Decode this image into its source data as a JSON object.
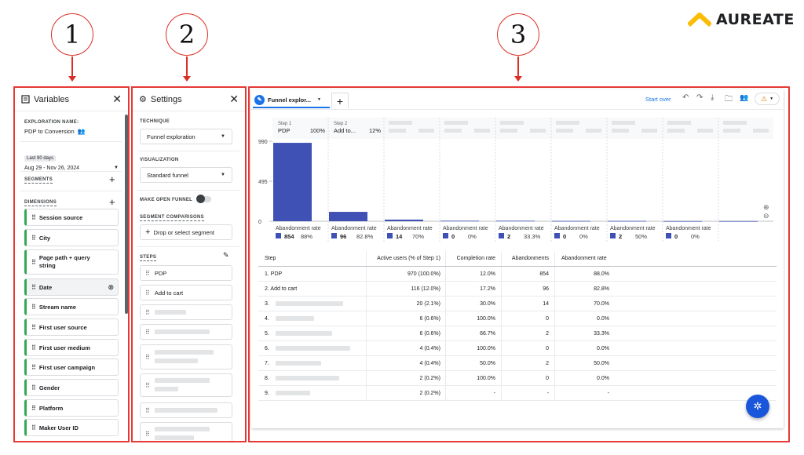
{
  "callouts": [
    "1",
    "2",
    "3"
  ],
  "brand": {
    "name": "AUREATE",
    "color": "#fbbc04"
  },
  "variables": {
    "title": "Variables",
    "exploration_label": "EXPLORATION NAME:",
    "exploration_name": "PDP to Conversion",
    "date_badge": "Last 90 days",
    "date_range": "Aug 29 - Nov 26, 2024",
    "segments_label": "SEGMENTS",
    "dimensions_label": "DIMENSIONS",
    "dimensions": [
      "Session source",
      "City",
      "Page path + query string",
      "Date",
      "Stream name",
      "First user source",
      "First user medium",
      "First user campaign",
      "Gender",
      "Platform",
      "Maker User ID"
    ]
  },
  "settings": {
    "title": "Settings",
    "technique_label": "TECHNIQUE",
    "technique_value": "Funnel exploration",
    "visualization_label": "VISUALIZATION",
    "visualization_value": "Standard funnel",
    "open_funnel_label": "MAKE OPEN FUNNEL",
    "segment_comparisons_label": "SEGMENT COMPARISONS",
    "drop_segment": "Drop or select segment",
    "steps_label": "STEPS",
    "steps": [
      "PDP",
      "Add to cart"
    ]
  },
  "report": {
    "tab_label": "Funnel explor...",
    "start_over": "Start over",
    "accent": "#1a73e8"
  },
  "chart_data": {
    "type": "bar",
    "categories": [
      "PDP",
      "Add to...",
      "",
      "",
      "",
      "",
      "",
      "",
      ""
    ],
    "step_labels": [
      "Step 1",
      "Step 2",
      "",
      "",
      "",
      "",
      "",
      "",
      ""
    ],
    "header_pct": [
      "100%",
      "12%",
      "",
      "",
      "",
      "",
      "",
      "",
      ""
    ],
    "values": [
      970,
      116,
      20,
      6,
      6,
      4,
      4,
      2,
      2
    ],
    "y_ticks": [
      "990",
      "495",
      "0"
    ],
    "ylim": [
      0,
      990
    ],
    "abandon_label": "Abandonment rate",
    "abandonments": [
      "854",
      "96",
      "14",
      "0",
      "2",
      "0",
      "2",
      "0"
    ],
    "abandon_rates": [
      "88%",
      "82.8%",
      "70%",
      "0%",
      "33.3%",
      "0%",
      "50%",
      "0%"
    ],
    "bar_color": "#3f51b5"
  },
  "table": {
    "headers": [
      "Step",
      "Active users (% of Step 1)",
      "Completion rate",
      "Abandonments",
      "Abandonment rate"
    ],
    "rows": [
      [
        "1. PDP",
        "970 (100.0%)",
        "12.0%",
        "854",
        "88.0%"
      ],
      [
        "2. Add to cart",
        "116 (12.0%)",
        "17.2%",
        "96",
        "82.8%"
      ],
      [
        "3.",
        "20 (2.1%)",
        "30.0%",
        "14",
        "70.0%"
      ],
      [
        "4.",
        "6 (0.6%)",
        "100.0%",
        "0",
        "0.0%"
      ],
      [
        "5.",
        "6 (0.6%)",
        "66.7%",
        "2",
        "33.3%"
      ],
      [
        "6.",
        "4 (0.4%)",
        "100.0%",
        "0",
        "0.0%"
      ],
      [
        "7.",
        "4 (0.4%)",
        "50.0%",
        "2",
        "50.0%"
      ],
      [
        "8.",
        "2 (0.2%)",
        "100.0%",
        "0",
        "0.0%"
      ],
      [
        "9.",
        "2 (0.2%)",
        "-",
        "-",
        "-"
      ]
    ]
  }
}
